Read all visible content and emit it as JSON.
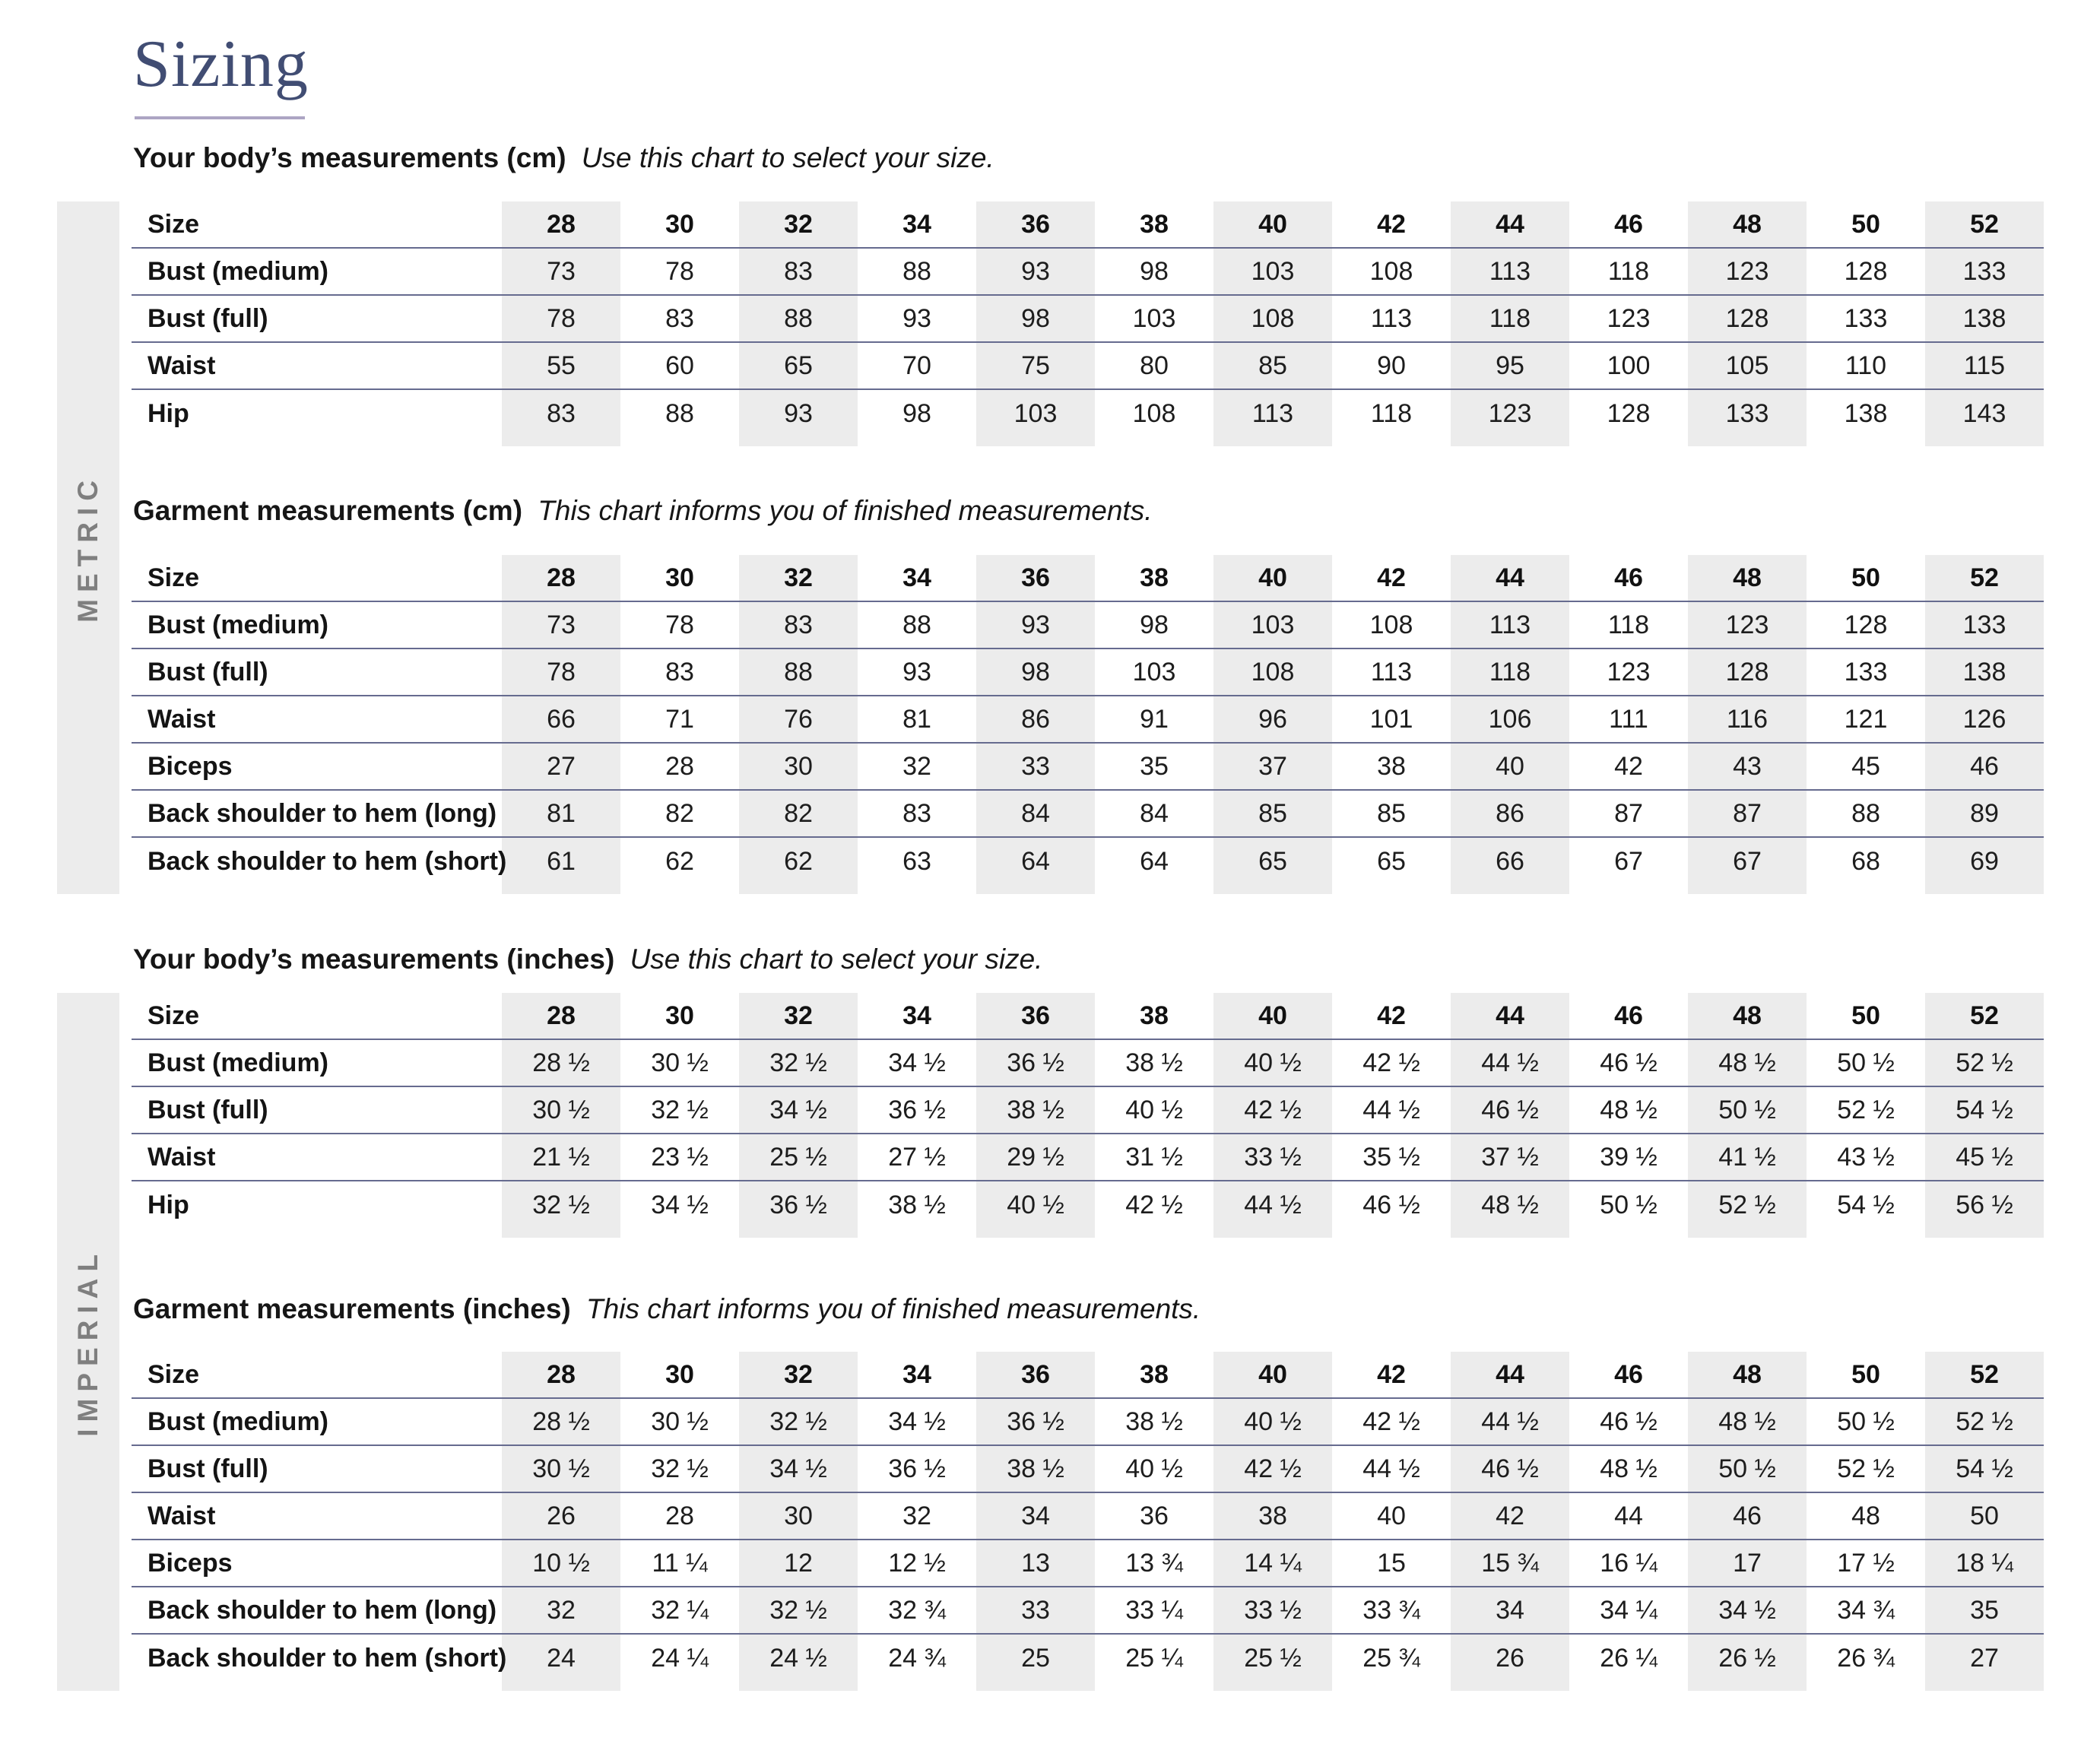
{
  "page": {
    "title": "Sizing"
  },
  "colors": {
    "title_navy": "#414d73",
    "title_rule": "#aca5c3",
    "row_line": "#666b8f",
    "column_stripe": "#ececec",
    "side_band_bg": "#ececec",
    "side_band_text": "#7f7f7f",
    "text": "#161616"
  },
  "side_labels": {
    "metric": "METRIC",
    "imperial": "IMPERIAL"
  },
  "sizes": [
    "28",
    "30",
    "32",
    "34",
    "36",
    "38",
    "40",
    "42",
    "44",
    "46",
    "48",
    "50",
    "52"
  ],
  "header_label": "Size",
  "sections": [
    {
      "heading_bold": "Your body’s measurements (cm)",
      "heading_italic": "Use this chart to select your size.",
      "rows": [
        {
          "label": "Bust (medium)",
          "values": [
            "73",
            "78",
            "83",
            "88",
            "93",
            "98",
            "103",
            "108",
            "113",
            "118",
            "123",
            "128",
            "133"
          ]
        },
        {
          "label": "Bust (full)",
          "values": [
            "78",
            "83",
            "88",
            "93",
            "98",
            "103",
            "108",
            "113",
            "118",
            "123",
            "128",
            "133",
            "138"
          ]
        },
        {
          "label": "Waist",
          "values": [
            "55",
            "60",
            "65",
            "70",
            "75",
            "80",
            "85",
            "90",
            "95",
            "100",
            "105",
            "110",
            "115"
          ]
        },
        {
          "label": "Hip",
          "values": [
            "83",
            "88",
            "93",
            "98",
            "103",
            "108",
            "113",
            "118",
            "123",
            "128",
            "133",
            "138",
            "143"
          ]
        }
      ]
    },
    {
      "heading_bold": "Garment measurements (cm)",
      "heading_italic": "This chart informs you of finished measurements.",
      "rows": [
        {
          "label": "Bust (medium)",
          "values": [
            "73",
            "78",
            "83",
            "88",
            "93",
            "98",
            "103",
            "108",
            "113",
            "118",
            "123",
            "128",
            "133"
          ]
        },
        {
          "label": "Bust (full)",
          "values": [
            "78",
            "83",
            "88",
            "93",
            "98",
            "103",
            "108",
            "113",
            "118",
            "123",
            "128",
            "133",
            "138"
          ]
        },
        {
          "label": "Waist",
          "values": [
            "66",
            "71",
            "76",
            "81",
            "86",
            "91",
            "96",
            "101",
            "106",
            "111",
            "116",
            "121",
            "126"
          ]
        },
        {
          "label": "Biceps",
          "values": [
            "27",
            "28",
            "30",
            "32",
            "33",
            "35",
            "37",
            "38",
            "40",
            "42",
            "43",
            "45",
            "46"
          ]
        },
        {
          "label": "Back shoulder to hem (long)",
          "values": [
            "81",
            "82",
            "82",
            "83",
            "84",
            "84",
            "85",
            "85",
            "86",
            "87",
            "87",
            "88",
            "89"
          ]
        },
        {
          "label": "Back shoulder to hem (short)",
          "values": [
            "61",
            "62",
            "62",
            "63",
            "64",
            "64",
            "65",
            "65",
            "66",
            "67",
            "67",
            "68",
            "69"
          ]
        }
      ]
    },
    {
      "heading_bold": "Your body’s measurements (inches)",
      "heading_italic": "Use this chart to select your size.",
      "rows": [
        {
          "label": "Bust (medium)",
          "values": [
            "28 ½",
            "30 ½",
            "32 ½",
            "34 ½",
            "36 ½",
            "38 ½",
            "40 ½",
            "42 ½",
            "44 ½",
            "46 ½",
            "48 ½",
            "50 ½",
            "52 ½"
          ]
        },
        {
          "label": "Bust (full)",
          "values": [
            "30 ½",
            "32 ½",
            "34 ½",
            "36 ½",
            "38 ½",
            "40 ½",
            "42 ½",
            "44 ½",
            "46 ½",
            "48 ½",
            "50 ½",
            "52 ½",
            "54 ½"
          ]
        },
        {
          "label": "Waist",
          "values": [
            "21 ½",
            "23 ½",
            "25 ½",
            "27 ½",
            "29 ½",
            "31 ½",
            "33 ½",
            "35 ½",
            "37 ½",
            "39 ½",
            "41 ½",
            "43 ½",
            "45 ½"
          ]
        },
        {
          "label": "Hip",
          "values": [
            "32 ½",
            "34 ½",
            "36 ½",
            "38 ½",
            "40 ½",
            "42 ½",
            "44 ½",
            "46 ½",
            "48 ½",
            "50 ½",
            "52 ½",
            "54 ½",
            "56 ½"
          ]
        }
      ]
    },
    {
      "heading_bold": "Garment measurements (inches)",
      "heading_italic": "This chart informs you of finished measurements.",
      "rows": [
        {
          "label": "Bust (medium)",
          "values": [
            "28 ½",
            "30 ½",
            "32 ½",
            "34 ½",
            "36 ½",
            "38 ½",
            "40 ½",
            "42 ½",
            "44 ½",
            "46 ½",
            "48 ½",
            "50 ½",
            "52 ½"
          ]
        },
        {
          "label": "Bust (full)",
          "values": [
            "30 ½",
            "32 ½",
            "34 ½",
            "36 ½",
            "38 ½",
            "40 ½",
            "42 ½",
            "44 ½",
            "46 ½",
            "48 ½",
            "50 ½",
            "52 ½",
            "54 ½"
          ]
        },
        {
          "label": "Waist",
          "values": [
            "26",
            "28",
            "30",
            "32",
            "34",
            "36",
            "38",
            "40",
            "42",
            "44",
            "46",
            "48",
            "50"
          ]
        },
        {
          "label": "Biceps",
          "values": [
            "10 ½",
            "11 ¼",
            "12",
            "12 ½",
            "13",
            "13 ¾",
            "14 ¼",
            "15",
            "15 ¾",
            "16 ¼",
            "17",
            "17 ½",
            "18 ¼"
          ]
        },
        {
          "label": "Back shoulder to hem (long)",
          "values": [
            "32",
            "32 ¼",
            "32 ½",
            "32 ¾",
            "33",
            "33 ¼",
            "33 ½",
            "33 ¾",
            "34",
            "34 ¼",
            "34 ½",
            "34 ¾",
            "35"
          ]
        },
        {
          "label": "Back shoulder to hem (short)",
          "values": [
            "24",
            "24 ¼",
            "24 ½",
            "24 ¾",
            "25",
            "25 ¼",
            "25 ½",
            "25 ¾",
            "26",
            "26 ¼",
            "26 ½",
            "26 ¾",
            "27"
          ]
        }
      ]
    }
  ]
}
